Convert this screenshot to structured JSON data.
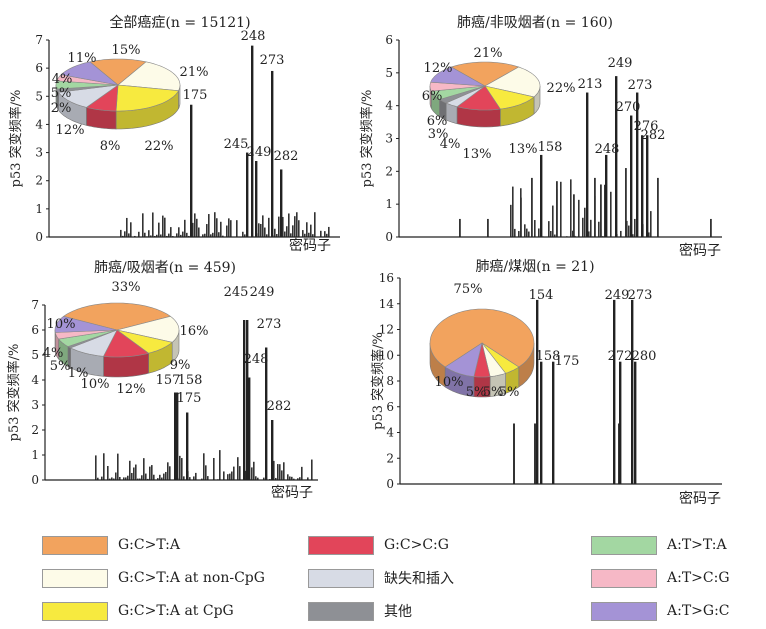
{
  "colors": {
    "G:C>T:A": "#f2a35e",
    "G:C>T:A at non-CpG": "#fdfbe8",
    "G:C>T:A at CpG": "#f7ea3f",
    "G:C>C:G": "#e2455a",
    "缺失和插入": "#d7dbe5",
    "其他": "#8e9095",
    "A:T>T:A": "#a3d7a2",
    "A:T>C:G": "#f6b8c6",
    "A:T>G:C": "#a493d6"
  },
  "legend": [
    {
      "key": "G:C>T:A",
      "label": "G:C>T:A"
    },
    {
      "key": "G:C>T:A at non-CpG",
      "label": "G:C>T:A at non-CpG"
    },
    {
      "key": "G:C>T:A at CpG",
      "label": "G:C>T:A at CpG"
    },
    {
      "key": "G:C>C:G",
      "label": "G:C>C:G"
    },
    {
      "key": "缺失和插入",
      "label": "缺失和插入"
    },
    {
      "key": "其他",
      "label": "其他"
    },
    {
      "key": "A:T>T:A",
      "label": "A:T>T:A"
    },
    {
      "key": "A:T>C:G",
      "label": "A:T>C:G"
    },
    {
      "key": "A:T>G:C",
      "label": "A:T>G:C"
    }
  ],
  "chart_data": [
    {
      "type": "bar",
      "title": "全部癌症(n = 15121)",
      "ylabel": "p53 突变频率/%",
      "xlabel": "密码子",
      "ylim": [
        0,
        7
      ],
      "yticks": [
        0,
        1,
        2,
        3,
        4,
        5,
        6,
        7
      ],
      "labeled_bars": [
        {
          "codon": "248",
          "value": 6.8
        },
        {
          "codon": "273",
          "value": 5.9
        },
        {
          "codon": "175",
          "value": 4.7
        },
        {
          "codon": "245",
          "value": 3.0
        },
        {
          "codon": "249",
          "value": 2.7
        },
        {
          "codon": "282",
          "value": 2.4
        }
      ],
      "pie": [
        {
          "key": "G:C>T:A",
          "label": "15%",
          "value": 15
        },
        {
          "key": "G:C>T:A at non-CpG",
          "label": "21%",
          "value": 21
        },
        {
          "key": "G:C>T:A at CpG",
          "label": "22%",
          "value": 22
        },
        {
          "key": "G:C>C:G",
          "label": "8%",
          "value": 8
        },
        {
          "key": "缺失和插入",
          "label": "12%",
          "value": 12
        },
        {
          "key": "其他",
          "label": "2%",
          "value": 2
        },
        {
          "key": "A:T>T:A",
          "label": "5%",
          "value": 5
        },
        {
          "key": "A:T>C:G",
          "label": "4%",
          "value": 4
        },
        {
          "key": "A:T>G:C",
          "label": "11%",
          "value": 11
        }
      ]
    },
    {
      "type": "bar",
      "title": "肺癌/非吸烟者(n = 160)",
      "ylabel": "p53 突变频率/%",
      "xlabel": "密码子",
      "ylim": [
        0,
        6
      ],
      "yticks": [
        0,
        1,
        2,
        3,
        4,
        5,
        6
      ],
      "labeled_bars": [
        {
          "codon": "249",
          "value": 4.9
        },
        {
          "codon": "213",
          "value": 4.4
        },
        {
          "codon": "273",
          "value": 4.4
        },
        {
          "codon": "270",
          "value": 3.7
        },
        {
          "codon": "276",
          "value": 3.1
        },
        {
          "codon": "282",
          "value": 3.1
        },
        {
          "codon": "158",
          "value": 2.5
        },
        {
          "codon": "248",
          "value": 2.5
        }
      ],
      "pie": [
        {
          "key": "G:C>T:A",
          "label": "21%",
          "value": 21
        },
        {
          "key": "G:C>T:A at non-CpG",
          "label": "22%",
          "value": 22
        },
        {
          "key": "G:C>T:A at CpG",
          "label": "13%",
          "value": 13
        },
        {
          "key": "G:C>C:G",
          "label": "13%",
          "value": 13
        },
        {
          "key": "缺失和插入",
          "label": "4%",
          "value": 4
        },
        {
          "key": "其他",
          "label": "3%",
          "value": 3
        },
        {
          "key": "A:T>T:A",
          "label": "6%",
          "value": 6
        },
        {
          "key": "A:T>C:G",
          "label": "6%",
          "value": 6
        },
        {
          "key": "A:T>G:C",
          "label": "12%",
          "value": 12
        }
      ]
    },
    {
      "type": "bar",
      "title": "肺癌/吸烟者(n = 459)",
      "ylabel": "p53 突变频率/%",
      "xlabel": "密码子",
      "ylim": [
        0,
        7
      ],
      "yticks": [
        0,
        1,
        2,
        3,
        4,
        5,
        6,
        7
      ],
      "labeled_bars": [
        {
          "codon": "245",
          "value": 6.4
        },
        {
          "codon": "249",
          "value": 6.4
        },
        {
          "codon": "273",
          "value": 5.3
        },
        {
          "codon": "248",
          "value": 4.1
        },
        {
          "codon": "157",
          "value": 3.5
        },
        {
          "codon": "158",
          "value": 3.5
        },
        {
          "codon": "175",
          "value": 2.7
        },
        {
          "codon": "282",
          "value": 2.4
        }
      ],
      "pie": [
        {
          "key": "G:C>T:A",
          "label": "33%",
          "value": 33
        },
        {
          "key": "G:C>T:A at non-CpG",
          "label": "16%",
          "value": 16
        },
        {
          "key": "G:C>T:A at CpG",
          "label": "9%",
          "value": 9
        },
        {
          "key": "G:C>C:G",
          "label": "12%",
          "value": 12
        },
        {
          "key": "缺失和插入",
          "label": "10%",
          "value": 10
        },
        {
          "key": "其他",
          "label": "1%",
          "value": 1
        },
        {
          "key": "A:T>T:A",
          "label": "5%",
          "value": 5
        },
        {
          "key": "A:T>C:G",
          "label": "4%",
          "value": 4
        },
        {
          "key": "A:T>G:C",
          "label": "10%",
          "value": 10
        }
      ]
    },
    {
      "type": "bar",
      "title": "肺癌/煤烟(n = 21)",
      "ylabel": "p53 突变频率/%",
      "xlabel": "密码子",
      "ylim": [
        0,
        16
      ],
      "yticks": [
        0,
        2,
        4,
        6,
        8,
        10,
        12,
        14,
        16
      ],
      "labeled_bars": [
        {
          "codon": "154",
          "value": 14.3
        },
        {
          "codon": "249",
          "value": 14.3
        },
        {
          "codon": "273",
          "value": 14.3
        },
        {
          "codon": "158",
          "value": 9.5
        },
        {
          "codon": "175",
          "value": 9.5
        },
        {
          "codon": "272",
          "value": 9.5
        },
        {
          "codon": "280",
          "value": 9.5
        }
      ],
      "pie": [
        {
          "key": "G:C>T:A",
          "label": "75%",
          "value": 75
        },
        {
          "key": "G:C>T:A at CpG",
          "label": "5%",
          "value": 5
        },
        {
          "key": "G:C>T:A at non-CpG",
          "label": "5%",
          "value": 5
        },
        {
          "key": "G:C>C:G",
          "label": "5%",
          "value": 5
        },
        {
          "key": "A:T>G:C",
          "label": "10%",
          "value": 10
        }
      ]
    }
  ]
}
